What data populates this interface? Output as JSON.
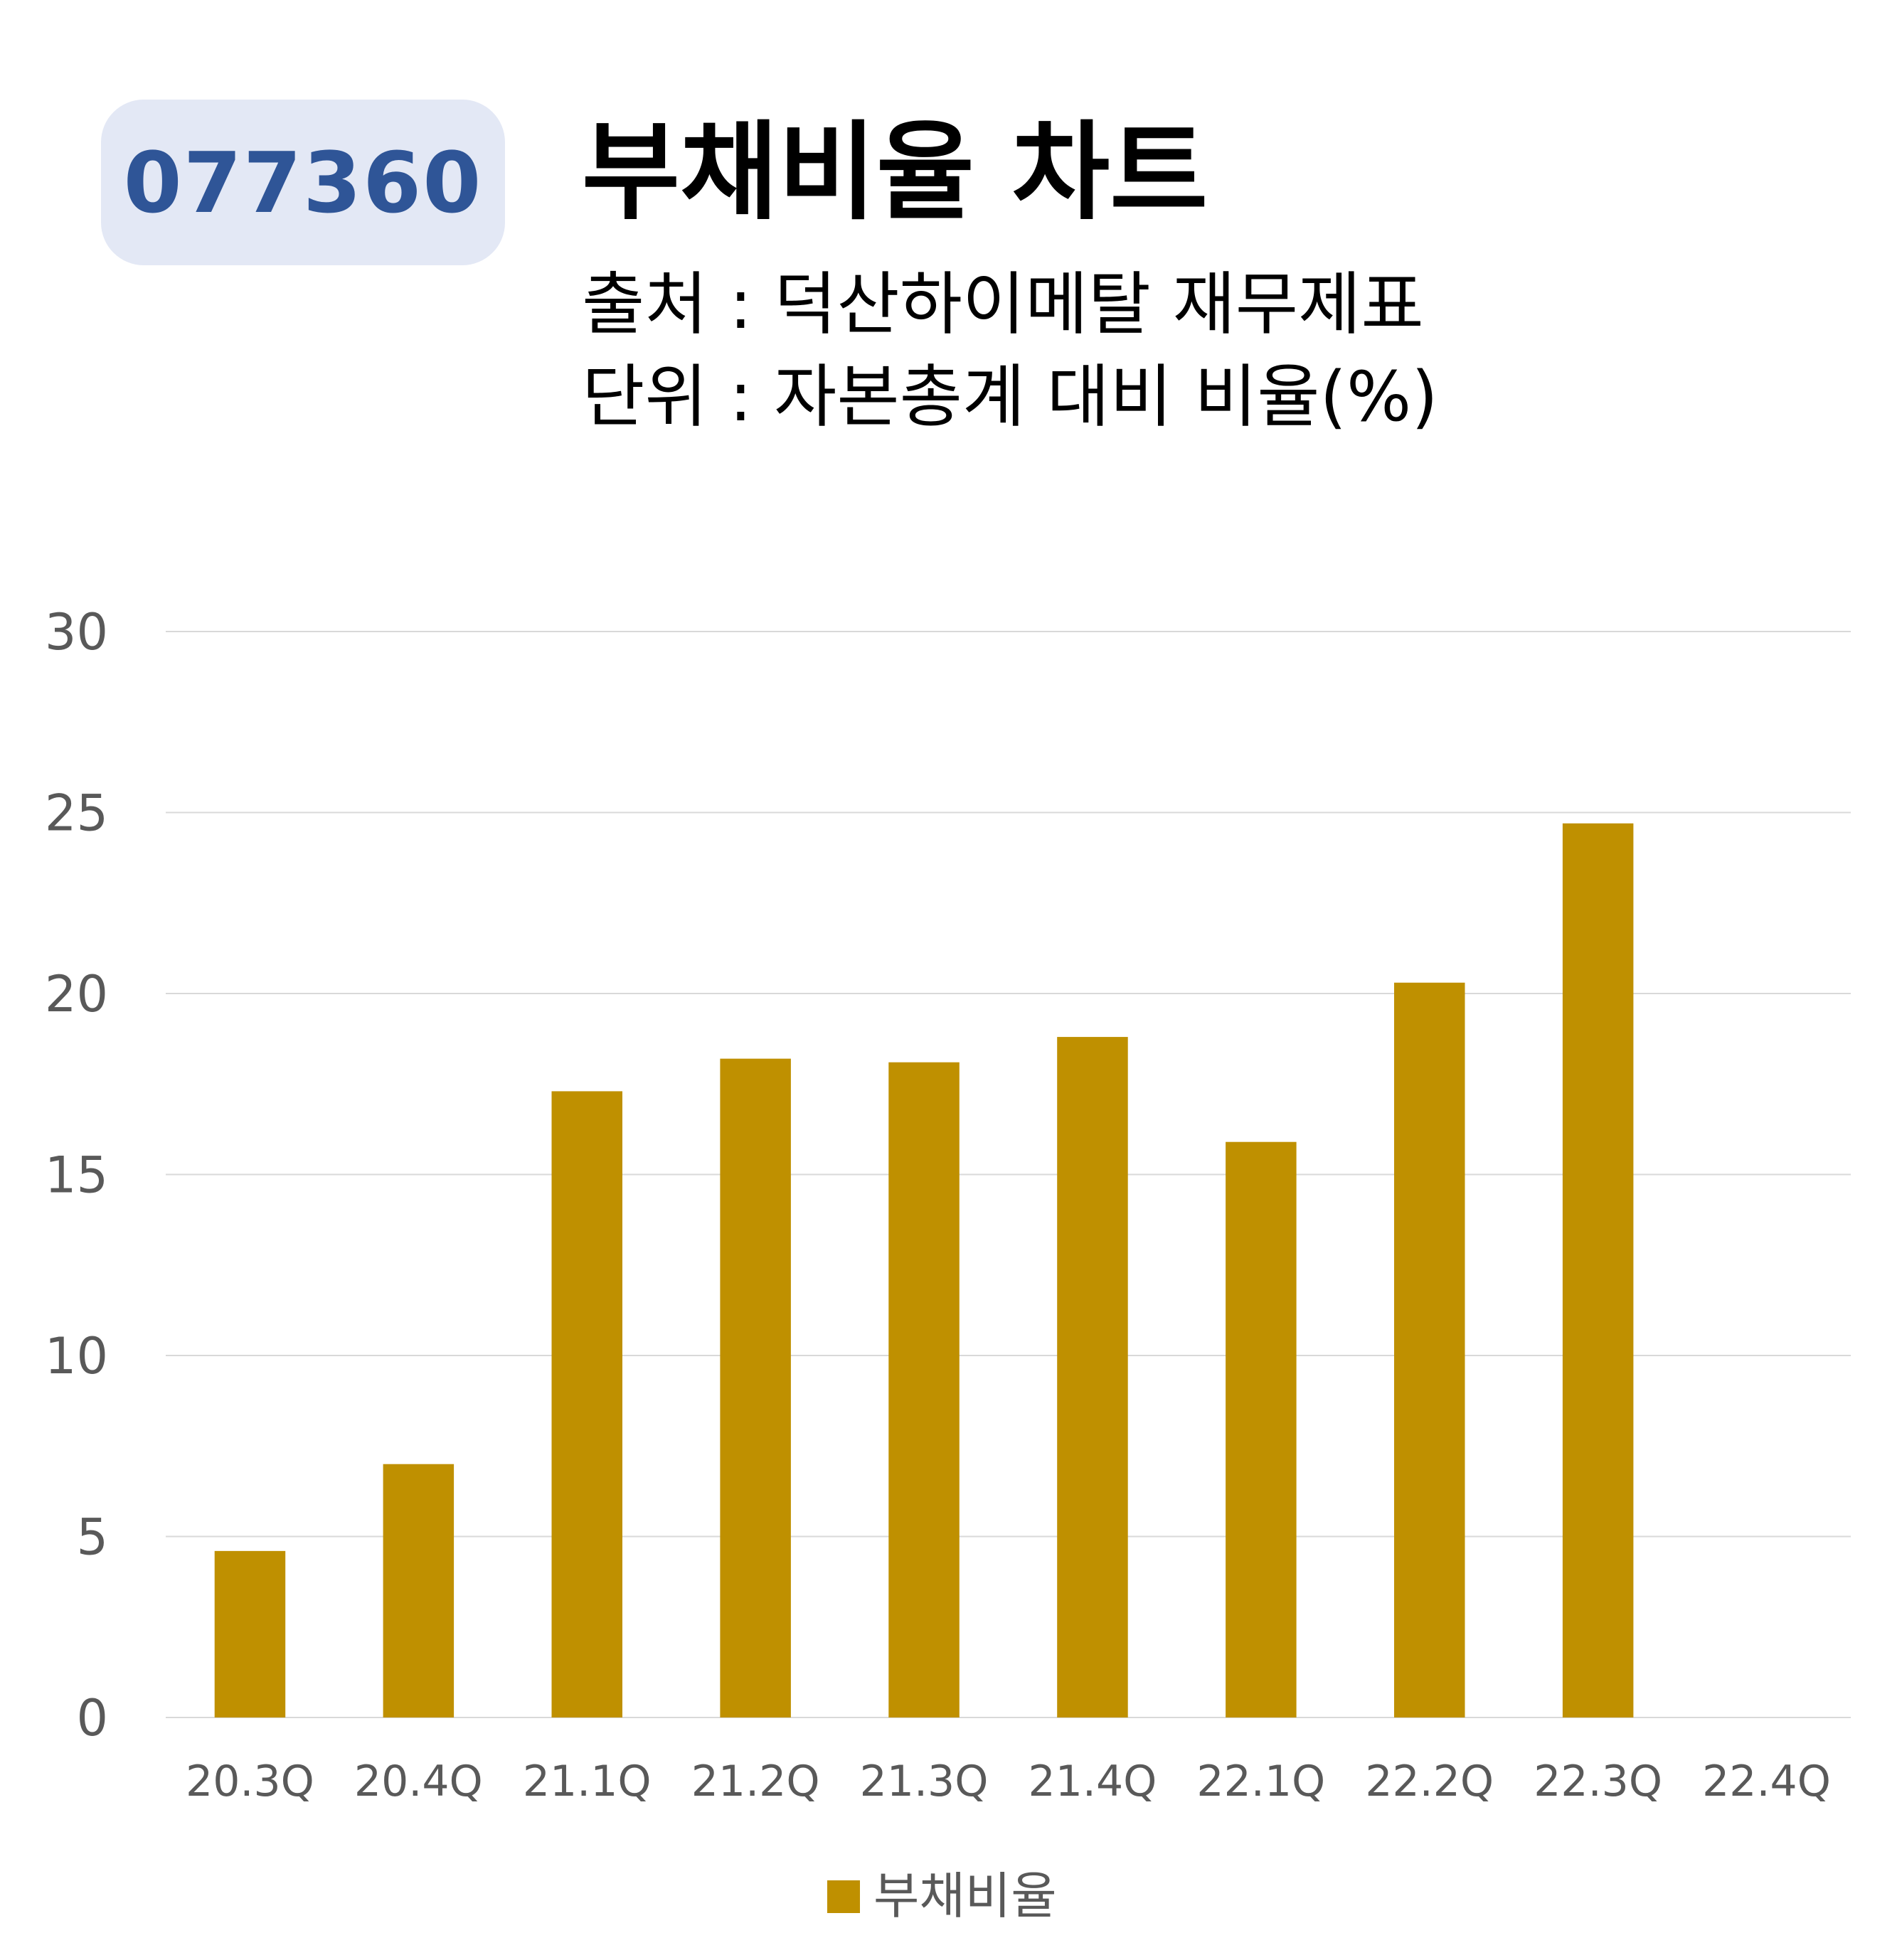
{
  "header": {
    "code": "077360",
    "title": "부채비율 차트",
    "source": "출처 : 덕산하이메탈 재무제표",
    "unit": "단위 : 자본총계 대비 비율(%)"
  },
  "colors": {
    "bar": "#bf9000",
    "badge_bg": "#e3e8f5",
    "badge_text": "#2f5597",
    "grid": "#d9d9d9",
    "tick_text": "#595959"
  },
  "chart_data": {
    "type": "bar",
    "categories": [
      "20.3Q",
      "20.4Q",
      "21.1Q",
      "21.2Q",
      "21.3Q",
      "21.4Q",
      "22.1Q",
      "22.2Q",
      "22.3Q",
      "22.4Q"
    ],
    "series": [
      {
        "name": "부채비율",
        "values": [
          4.6,
          7.0,
          17.3,
          18.2,
          18.1,
          18.8,
          15.9,
          20.3,
          24.7,
          null
        ]
      }
    ],
    "ylim": [
      0,
      30
    ],
    "yticks": [
      0,
      5,
      10,
      15,
      20,
      25,
      30
    ],
    "grid": true,
    "legend": "bottom"
  }
}
